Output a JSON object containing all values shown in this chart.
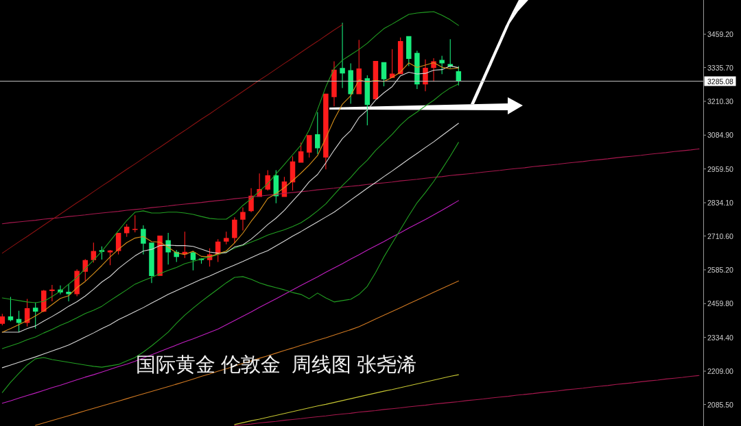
{
  "chart_data": {
    "type": "candlestick",
    "title": "国际黄金 伦敦金  周线图 张尧浠",
    "categories": [
      null,
      null,
      null,
      null,
      null,
      null,
      null,
      null,
      null,
      null,
      null,
      null,
      null,
      null,
      null,
      null,
      null,
      null,
      null,
      null,
      null,
      null,
      null,
      null,
      null,
      null,
      null,
      null,
      null,
      null,
      null,
      null,
      null,
      null,
      null,
      null,
      null,
      null,
      null,
      null,
      null,
      null,
      null,
      null,
      null,
      null,
      null,
      null,
      null,
      null,
      null,
      null,
      null,
      null,
      null,
      null,
      null,
      null,
      null,
      null,
      null,
      null,
      null,
      null,
      null,
      null,
      null,
      null,
      null,
      null,
      null,
      null,
      null,
      null,
      null,
      null,
      null,
      null,
      null,
      null,
      null,
      null,
      null,
      null,
      null
    ],
    "ohlc": [
      [
        2385,
        2422,
        2379,
        2412
      ],
      [
        2412,
        2485,
        2394,
        2398
      ],
      [
        2403,
        2433,
        2354,
        2388
      ],
      [
        2388,
        2477,
        2375,
        2443
      ],
      [
        2445,
        2464,
        2367,
        2430
      ],
      [
        2430,
        2511,
        2428,
        2508
      ],
      [
        2506,
        2529,
        2468,
        2512
      ],
      [
        2512,
        2527,
        2494,
        2501
      ],
      [
        2504,
        2532,
        2468,
        2495
      ],
      [
        2495,
        2587,
        2487,
        2581
      ],
      [
        2578,
        2625,
        2544,
        2621
      ],
      [
        2621,
        2686,
        2612,
        2655
      ],
      [
        2658,
        2672,
        2623,
        2652
      ],
      [
        2650,
        2659,
        2602,
        2657
      ],
      [
        2655,
        2722,
        2642,
        2722
      ],
      [
        2721,
        2755,
        2708,
        2745
      ],
      [
        2733,
        2788,
        2724,
        2737
      ],
      [
        2737,
        2750,
        2642,
        2682
      ],
      [
        2686,
        2686,
        2536,
        2562
      ],
      [
        2563,
        2712,
        2563,
        2712
      ],
      [
        2695,
        2722,
        2605,
        2650
      ],
      [
        2652,
        2659,
        2614,
        2633
      ],
      [
        2642,
        2727,
        2629,
        2652
      ],
      [
        2650,
        2655,
        2583,
        2621
      ],
      [
        2627,
        2629,
        2608,
        2621
      ],
      [
        2621,
        2665,
        2597,
        2642
      ],
      [
        2642,
        2699,
        2614,
        2690
      ],
      [
        2690,
        2727,
        2680,
        2703
      ],
      [
        2703,
        2780,
        2684,
        2771
      ],
      [
        2771,
        2817,
        2731,
        2800
      ],
      [
        2803,
        2888,
        2799,
        2860
      ],
      [
        2856,
        2943,
        2856,
        2885
      ],
      [
        2883,
        2955,
        2879,
        2936
      ],
      [
        2936,
        2955,
        2832,
        2858
      ],
      [
        2856,
        2930,
        2856,
        2913
      ],
      [
        2910,
        3006,
        2879,
        2987
      ],
      [
        2983,
        3057,
        2983,
        3025
      ],
      [
        3020,
        3085,
        3002,
        3085
      ],
      [
        3088,
        3170,
        3015,
        3036
      ],
      [
        3002,
        3239,
        2958,
        3239
      ],
      [
        3226,
        3359,
        3192,
        3328
      ],
      [
        3334,
        3502,
        3260,
        3314
      ],
      [
        3326,
        3351,
        3201,
        3237
      ],
      [
        3237,
        3438,
        3237,
        3332
      ],
      [
        3296,
        3307,
        3121,
        3197
      ],
      [
        3218,
        3360,
        3218,
        3360
      ],
      [
        3356,
        3356,
        3266,
        3292
      ],
      [
        3297,
        3404,
        3297,
        3313
      ],
      [
        3311,
        3447,
        3311,
        3434
      ],
      [
        3452,
        3452,
        3341,
        3368
      ],
      [
        3390,
        3398,
        3256,
        3273
      ],
      [
        3273,
        3366,
        3248,
        3335
      ],
      [
        3334,
        3370,
        3283,
        3359
      ],
      [
        3364,
        3379,
        3311,
        3351
      ],
      [
        3349,
        3441,
        3334,
        3339
      ],
      [
        3322,
        3341,
        3269,
        3285.08
      ],
      null,
      null,
      null,
      null,
      null,
      null,
      null,
      null,
      null,
      null,
      null,
      null,
      null,
      null,
      null,
      null,
      null,
      null,
      null,
      null,
      null,
      null,
      null,
      null,
      null,
      null,
      null,
      null,
      null
    ],
    "colors": [
      "#ff1c1c",
      "#18ec7c",
      "#18ec7c",
      "#ff1c1c",
      "#18ec7c",
      "#ff1c1c",
      "#ff1c1c",
      "#18ec7c",
      "#18ec7c",
      "#ff1c1c",
      "#ff1c1c",
      "#ff1c1c",
      "#18ec7c",
      "#ff1c1c",
      "#ff1c1c",
      "#ff1c1c",
      "#ff1c1c",
      "#18ec7c",
      "#18ec7c",
      "#ff1c1c",
      "#18ec7c",
      "#18ec7c",
      "#ff1c1c",
      "#18ec7c",
      "#18ec7c",
      "#ff1c1c",
      "#ff1c1c",
      "#ff1c1c",
      "#ff1c1c",
      "#ff1c1c",
      "#ff1c1c",
      "#ff1c1c",
      "#ff1c1c",
      "#18ec7c",
      "#ff1c1c",
      "#ff1c1c",
      "#ff1c1c",
      "#ff1c1c",
      "#18ec7c",
      "#ff1c1c",
      "#ff1c1c",
      "#18ec7c",
      "#18ec7c",
      "#ff1c1c",
      "#18ec7c",
      "#ff1c1c",
      "#18ec7c",
      "#ff1c1c",
      "#ff1c1c",
      "#18ec7c",
      "#18ec7c",
      "#ff1c1c",
      "#ff1c1c",
      "#18ec7c",
      "#18ec7c",
      "#18ec7c",
      null,
      null,
      null,
      null,
      null,
      null,
      null,
      null,
      null,
      null,
      null,
      null,
      null,
      null,
      null,
      null,
      null,
      null,
      null,
      null,
      null,
      null,
      null,
      null,
      null,
      null,
      null,
      null,
      null
    ],
    "series": [
      {
        "type": "line",
        "color": "#a8184e",
        "values": [
          2756,
          2760,
          2763,
          2766,
          2769,
          2773,
          2776,
          2779,
          2783,
          2786,
          2789,
          2793,
          2796,
          2799,
          2802,
          2806,
          2809,
          2812,
          2816,
          2819,
          2822,
          2826,
          2829,
          2832,
          2835,
          2839,
          2842,
          2845,
          2849,
          2852,
          2855,
          2859,
          2862,
          2865,
          2869,
          2872,
          2875,
          2878,
          2882,
          2885,
          2888,
          2892,
          2895,
          2898,
          2902,
          2905,
          2908,
          2911,
          2915,
          2918,
          2921,
          2925,
          2928,
          2931,
          2935,
          2938,
          2941,
          2944,
          2948,
          2951,
          2954,
          2958,
          2961,
          2964,
          2968,
          2971,
          2974,
          2977,
          2981,
          2984,
          2987,
          2991,
          2994,
          2997,
          3001,
          3004,
          3007,
          3010,
          3014,
          3017,
          3020,
          3024,
          3027,
          3030,
          3034
        ]
      },
      {
        "type": "line",
        "color": "#a8184e",
        "values": [
          null,
          null,
          null,
          null,
          null,
          null,
          null,
          null,
          null,
          null,
          null,
          null,
          null,
          null,
          null,
          null,
          null,
          null,
          null,
          null,
          null,
          null,
          null,
          null,
          null,
          null,
          null,
          null,
          2007,
          2010,
          2013,
          2017,
          2020,
          2023,
          2027,
          2030,
          2033,
          2037,
          2040,
          2043,
          2047,
          2050,
          2053,
          2057,
          2060,
          2063,
          2067,
          2070,
          2073,
          2077,
          2080,
          2083,
          2087,
          2090,
          2093,
          2096,
          2100,
          2103,
          2106,
          2110,
          2113,
          2116,
          2120,
          2123,
          2126,
          2130,
          2133,
          2136,
          2140,
          2143,
          2146,
          2150,
          2153,
          2156,
          2160,
          2163,
          2166,
          2170,
          2173,
          2176,
          2180,
          2183,
          2186,
          2190,
          2193
        ]
      },
      {
        "type": "line",
        "color": "#8a1212",
        "values": [
          2647,
          2668,
          2689,
          2709,
          2730,
          2751,
          2772,
          2792,
          2813,
          2834,
          2854,
          2875,
          2896,
          2916,
          2937,
          2958,
          2978,
          2999,
          3020,
          3040,
          3061,
          3082,
          3102,
          3123,
          3144,
          3164,
          3185,
          3206,
          3226,
          3247,
          3268,
          3289,
          3309,
          3330,
          3351,
          3371,
          3392,
          3413,
          3433,
          3454,
          3475,
          3495,
          null,
          null,
          null,
          null,
          null,
          null,
          null,
          null,
          null,
          null,
          null,
          null,
          null,
          null,
          null,
          null,
          null,
          null,
          null,
          null,
          null,
          null,
          null,
          null,
          null,
          null,
          null,
          null,
          null,
          null,
          null,
          null,
          null,
          null,
          null,
          null,
          null,
          null,
          null,
          null,
          null,
          null,
          null
        ]
      },
      {
        "type": "line",
        "color": "#c8c832",
        "values": [
          null,
          null,
          null,
          null,
          null,
          null,
          null,
          null,
          null,
          null,
          null,
          null,
          null,
          null,
          null,
          null,
          null,
          null,
          null,
          null,
          null,
          null,
          null,
          null,
          null,
          null,
          null,
          null,
          2011,
          2018,
          2025,
          2031,
          2038,
          2045,
          2052,
          2059,
          2066,
          2073,
          2080,
          2086,
          2093,
          2100,
          2107,
          2114,
          2121,
          2128,
          2135,
          2141,
          2148,
          2155,
          2162,
          2169,
          2176,
          2183,
          2190,
          2196,
          null,
          null,
          null,
          null,
          null,
          null,
          null,
          null,
          null,
          null,
          null,
          null,
          null,
          null,
          null,
          null,
          null,
          null,
          null,
          null,
          null,
          null,
          null,
          null,
          null,
          null,
          null,
          null,
          null
        ]
      },
      {
        "type": "line",
        "color": "#d27a22",
        "values": [
          null,
          null,
          null,
          null,
          2008,
          2017,
          2026,
          2035,
          2044,
          2053,
          2062,
          2071,
          2080,
          2089,
          2098,
          2107,
          2116,
          2125,
          2134,
          2143,
          2152,
          2161,
          2170,
          2180,
          2190,
          2199,
          2209,
          2218,
          2228,
          2238,
          2247,
          2257,
          2266,
          2276,
          2286,
          2295,
          2305,
          2314,
          2324,
          2333,
          2343,
          2353,
          2363,
          2374,
          2388,
          2403,
          2417,
          2431,
          2445,
          2459,
          2473,
          2487,
          2502,
          2516,
          2530,
          2544,
          null,
          null,
          null,
          null,
          null,
          null,
          null,
          null,
          null,
          null,
          null,
          null,
          null,
          null,
          null,
          null,
          null,
          null,
          null,
          null,
          null,
          null,
          null,
          null,
          null,
          null,
          null,
          null,
          null
        ]
      },
      {
        "type": "line",
        "color": "#c21fc2",
        "values": [
          2090,
          2099,
          2109,
          2119,
          2128,
          2138,
          2148,
          2157,
          2167,
          2177,
          2187,
          2196,
          2206,
          2216,
          2226,
          2235,
          2246,
          2258,
          2270,
          2282,
          2294,
          2306,
          2318,
          2329,
          2341,
          2353,
          2365,
          2381,
          2397,
          2413,
          2429,
          2446,
          2462,
          2478,
          2494,
          2511,
          2527,
          2543,
          2559,
          2576,
          2592,
          2608,
          2625,
          2641,
          2658,
          2674,
          2690,
          2707,
          2723,
          2740,
          2756,
          2772,
          2789,
          2806,
          2824,
          2842,
          null,
          null,
          null,
          null,
          null,
          null,
          null,
          null,
          null,
          null,
          null,
          null,
          null,
          null,
          null,
          null,
          null,
          null,
          null,
          null,
          null,
          null,
          null,
          null,
          null,
          null,
          null,
          null,
          null
        ]
      },
      {
        "type": "line",
        "color": "#22a022",
        "values": [
          2130,
          2168,
          2201,
          2232,
          2255,
          2260,
          2252,
          2247,
          2242,
          2237,
          2232,
          2227,
          2224,
          2229,
          2234,
          2247,
          2260,
          2280,
          2303,
          2328,
          2354,
          2387,
          2417,
          2443,
          2468,
          2491,
          2514,
          2537,
          2557,
          2560,
          2550,
          2537,
          2527,
          2519,
          2511,
          2501,
          2494,
          2478,
          2499,
          2481,
          2466,
          2471,
          2476,
          2494,
          2524,
          2575,
          2633,
          2684,
          2735,
          2786,
          2834,
          2872,
          2913,
          2959,
          3007,
          3058,
          null,
          null,
          null,
          null,
          null,
          null,
          null,
          null,
          null,
          null,
          null,
          null,
          null,
          null,
          null,
          null,
          null,
          null,
          null,
          null,
          null,
          null,
          null,
          null,
          null,
          null,
          null,
          null,
          null
        ]
      },
      {
        "type": "line",
        "color": "#d8d8d8",
        "values": [
          2222,
          2232,
          2242,
          2252,
          2262,
          2273,
          2284,
          2295,
          2306,
          2321,
          2336,
          2351,
          2367,
          2382,
          2400,
          2415,
          2430,
          2445,
          2462,
          2478,
          2494,
          2508,
          2522,
          2536,
          2550,
          2562,
          2576,
          2590,
          2603,
          2616,
          2630,
          2644,
          2656,
          2674,
          2692,
          2710,
          2727,
          2745,
          2763,
          2781,
          2799,
          2821,
          2844,
          2866,
          2888,
          2909,
          2931,
          2952,
          2974,
          2996,
          3017,
          3039,
          3060,
          3083,
          3106,
          3129,
          null,
          null,
          null,
          null,
          null,
          null,
          null,
          null,
          null,
          null,
          null,
          null,
          null,
          null,
          null,
          null,
          null,
          null,
          null,
          null,
          null,
          null,
          null,
          null,
          null,
          null,
          null,
          null,
          null
        ]
      },
      {
        "type": "line",
        "color": "#22a022",
        "values": [
          2293,
          2303,
          2313,
          2326,
          2336,
          2351,
          2364,
          2379,
          2392,
          2407,
          2423,
          2435,
          2450,
          2471,
          2491,
          2511,
          2532,
          2545,
          2557,
          2571,
          2583,
          2594,
          2608,
          2616,
          2626,
          2633,
          2642,
          2652,
          2666,
          2676,
          2688,
          2700,
          2714,
          2724,
          2734,
          2746,
          2760,
          2780,
          2804,
          2830,
          2864,
          2898,
          2928,
          2963,
          2992,
          3028,
          3058,
          3088,
          3122,
          3150,
          3171,
          3193,
          3214,
          3239,
          3260,
          3275,
          null,
          null,
          null,
          null,
          null,
          null,
          null,
          null,
          null,
          null,
          null,
          null,
          null,
          null,
          null,
          null,
          null,
          null,
          null,
          null,
          null,
          null,
          null,
          null,
          null,
          null,
          null,
          null,
          null
        ]
      },
      {
        "type": "line",
        "color": "#22a022",
        "values": [
          2481,
          2476,
          2471,
          2466,
          2463,
          2468,
          2486,
          2506,
          2532,
          2557,
          2590,
          2621,
          2654,
          2692,
          2730,
          2768,
          2799,
          2804,
          2796,
          2796,
          2799,
          2799,
          2796,
          2791,
          2783,
          2776,
          2773,
          2773,
          2794,
          2824,
          2849,
          2877,
          2905,
          2941,
          2976,
          3012,
          3048,
          3104,
          3180,
          3264,
          3332,
          3363,
          3383,
          3403,
          3426,
          3454,
          3480,
          3497,
          3515,
          3533,
          3538,
          3541,
          3543,
          3530,
          3513,
          3492,
          null,
          null,
          null,
          null,
          null,
          null,
          null,
          null,
          null,
          null,
          null,
          null,
          null,
          null,
          null,
          null,
          null,
          null,
          null,
          null,
          null,
          null,
          null,
          null,
          null,
          null,
          null,
          null,
          null
        ]
      },
      {
        "type": "line",
        "color": "#d8d8d8",
        "values": [
          2354,
          2354,
          2354,
          2367,
          2377,
          2395,
          2412,
          2430,
          2450,
          2467,
          2488,
          2513,
          2540,
          2561,
          2590,
          2614,
          2637,
          2655,
          2661,
          2675,
          2677,
          2675,
          2675,
          2672,
          2662,
          2651,
          2647,
          2649,
          2670,
          2678,
          2699,
          2725,
          2753,
          2777,
          2806,
          2840,
          2874,
          2912,
          2939,
          2982,
          3029,
          3072,
          3102,
          3150,
          3178,
          3215,
          3242,
          3265,
          3305,
          3318,
          3312,
          3314,
          3326,
          3328,
          3342,
          3335,
          null,
          null,
          null,
          null,
          null,
          null,
          null,
          null,
          null,
          null,
          null,
          null,
          null,
          null,
          null,
          null,
          null,
          null,
          null,
          null,
          null,
          null,
          null,
          null,
          null,
          null,
          null,
          null,
          null
        ]
      },
      {
        "type": "line",
        "color": "#d9911a",
        "values": [
          2354,
          2367,
          2382,
          2397,
          2414,
          2433,
          2456,
          2479,
          2489,
          2519,
          2542,
          2571,
          2601,
          2633,
          2661,
          2686,
          2703,
          2709,
          2690,
          2688,
          2669,
          2648,
          2642,
          2654,
          2635,
          2634,
          2645,
          2655,
          2685,
          2721,
          2765,
          2804,
          2850,
          2868,
          2890,
          2916,
          2944,
          2974,
          3009,
          3074,
          3143,
          3200,
          3231,
          3290,
          3282,
          3288,
          3284,
          3299,
          3319,
          3353,
          3336,
          3345,
          3354,
          3337,
          3331,
          3334,
          null,
          null,
          null,
          null,
          null,
          null,
          null,
          null,
          null,
          null,
          null,
          null,
          null,
          null,
          null,
          null,
          null,
          null,
          null,
          null,
          null,
          null,
          null,
          null,
          null,
          null,
          null,
          null,
          null
        ]
      }
    ],
    "ylim": [
      2005.7,
      3586.3
    ],
    "yticks": [
      {
        "value": 2085.5,
        "label": "2085.50"
      },
      {
        "value": 2209,
        "label": "2209.00"
      },
      {
        "value": 2334.4,
        "label": "2334.40"
      },
      {
        "value": 2459.8,
        "label": "2459.80"
      },
      {
        "value": 2585.2,
        "label": "2585.20"
      },
      {
        "value": 2710.6,
        "label": "2710.60"
      },
      {
        "value": 2834.1,
        "label": "2834.10"
      },
      {
        "value": 2959.5,
        "label": "2959.50"
      },
      {
        "value": 3084.9,
        "label": "3084.90"
      },
      {
        "value": 3210.3,
        "label": "3210.30"
      },
      {
        "value": 3335.7,
        "label": "3335.70"
      },
      {
        "value": 3459.2,
        "label": "3459.20"
      }
    ],
    "ref_lines": [
      {
        "axis": "y",
        "value": 3285.08,
        "label": "3285.08",
        "color": "#c4c4c4"
      }
    ],
    "tick_labels": "y"
  }
}
